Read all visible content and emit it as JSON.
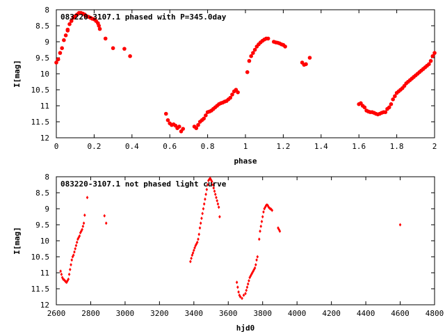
{
  "chart_data": [
    {
      "type": "scatter",
      "title": "083220-3107.1 phased with P=345.0day",
      "xlabel": "phase",
      "ylabel": "I[mag]",
      "xlim": [
        0,
        2
      ],
      "ylim": [
        8,
        12
      ],
      "y_inverted": true,
      "xticks": [
        "0",
        "0.2",
        "0.4",
        "0.6",
        "0.8",
        "1",
        "1.2",
        "1.4",
        "1.6",
        "1.8",
        "2"
      ],
      "yticks": [
        "8",
        "8.5",
        "9",
        "9.5",
        "10",
        "10.5",
        "11",
        "11.5",
        "12"
      ],
      "grid": false,
      "point_color": "#ff0000",
      "series": [
        {
          "points": [
            [
              0.0,
              9.65
            ],
            [
              0.01,
              9.55
            ],
            [
              0.02,
              9.35
            ],
            [
              0.03,
              9.2
            ],
            [
              0.04,
              8.95
            ],
            [
              0.05,
              8.8
            ],
            [
              0.06,
              8.62
            ],
            [
              0.07,
              8.45
            ],
            [
              0.08,
              8.35
            ],
            [
              0.09,
              8.25
            ],
            [
              0.1,
              8.2
            ],
            [
              0.11,
              8.15
            ],
            [
              0.12,
              8.1
            ],
            [
              0.13,
              8.1
            ],
            [
              0.14,
              8.12
            ],
            [
              0.15,
              8.15
            ],
            [
              0.16,
              8.2
            ],
            [
              0.17,
              8.22
            ],
            [
              0.18,
              8.25
            ],
            [
              0.19,
              8.28
            ],
            [
              0.2,
              8.3
            ],
            [
              0.21,
              8.35
            ],
            [
              0.22,
              8.42
            ],
            [
              0.225,
              8.5
            ],
            [
              0.23,
              8.6
            ],
            [
              0.06,
              8.65
            ],
            [
              0.26,
              8.9
            ],
            [
              0.3,
              9.2
            ],
            [
              0.36,
              9.22
            ],
            [
              0.39,
              9.45
            ],
            [
              0.58,
              11.25
            ],
            [
              0.59,
              11.45
            ],
            [
              0.6,
              11.55
            ],
            [
              0.61,
              11.6
            ],
            [
              0.62,
              11.58
            ],
            [
              0.63,
              11.62
            ],
            [
              0.64,
              11.7
            ],
            [
              0.65,
              11.65
            ],
            [
              0.66,
              11.8
            ],
            [
              0.67,
              11.72
            ],
            [
              0.73,
              11.65
            ],
            [
              0.74,
              11.7
            ],
            [
              0.75,
              11.6
            ],
            [
              0.76,
              11.5
            ],
            [
              0.77,
              11.45
            ],
            [
              0.78,
              11.4
            ],
            [
              0.79,
              11.3
            ],
            [
              0.8,
              11.2
            ],
            [
              0.81,
              11.18
            ],
            [
              0.82,
              11.15
            ],
            [
              0.83,
              11.1
            ],
            [
              0.84,
              11.05
            ],
            [
              0.85,
              11.0
            ],
            [
              0.86,
              10.95
            ],
            [
              0.87,
              10.92
            ],
            [
              0.88,
              10.9
            ],
            [
              0.89,
              10.87
            ],
            [
              0.9,
              10.85
            ],
            [
              0.91,
              10.8
            ],
            [
              0.92,
              10.75
            ],
            [
              0.93,
              10.65
            ],
            [
              0.94,
              10.55
            ],
            [
              0.95,
              10.5
            ],
            [
              0.96,
              10.58
            ],
            [
              1.01,
              9.95
            ],
            [
              1.02,
              9.6
            ],
            [
              1.03,
              9.45
            ],
            [
              1.04,
              9.35
            ],
            [
              1.05,
              9.25
            ],
            [
              1.06,
              9.15
            ],
            [
              1.07,
              9.08
            ],
            [
              1.08,
              9.02
            ],
            [
              1.09,
              8.97
            ],
            [
              1.1,
              8.93
            ],
            [
              1.11,
              8.9
            ],
            [
              1.12,
              8.9
            ],
            [
              1.15,
              9.0
            ],
            [
              1.16,
              9.02
            ],
            [
              1.17,
              9.03
            ],
            [
              1.18,
              9.05
            ],
            [
              1.19,
              9.08
            ],
            [
              1.2,
              9.1
            ],
            [
              1.21,
              9.15
            ],
            [
              1.3,
              9.65
            ],
            [
              1.31,
              9.72
            ],
            [
              1.32,
              9.7
            ],
            [
              1.34,
              9.5
            ],
            [
              1.6,
              10.95
            ],
            [
              1.61,
              10.92
            ],
            [
              1.62,
              11.0
            ],
            [
              1.63,
              11.05
            ],
            [
              1.64,
              11.15
            ],
            [
              1.65,
              11.18
            ],
            [
              1.66,
              11.2
            ],
            [
              1.67,
              11.2
            ],
            [
              1.68,
              11.22
            ],
            [
              1.69,
              11.25
            ],
            [
              1.7,
              11.27
            ],
            [
              1.71,
              11.25
            ],
            [
              1.72,
              11.22
            ],
            [
              1.73,
              11.2
            ],
            [
              1.74,
              11.2
            ],
            [
              1.75,
              11.1
            ],
            [
              1.76,
              11.05
            ],
            [
              1.77,
              10.95
            ],
            [
              1.78,
              10.8
            ],
            [
              1.79,
              10.7
            ],
            [
              1.8,
              10.6
            ],
            [
              1.81,
              10.55
            ],
            [
              1.82,
              10.5
            ],
            [
              1.83,
              10.45
            ],
            [
              1.84,
              10.38
            ],
            [
              1.85,
              10.3
            ],
            [
              1.86,
              10.25
            ],
            [
              1.87,
              10.2
            ],
            [
              1.88,
              10.15
            ],
            [
              1.89,
              10.1
            ],
            [
              1.9,
              10.05
            ],
            [
              1.91,
              10.0
            ],
            [
              1.92,
              9.95
            ],
            [
              1.93,
              9.9
            ],
            [
              1.94,
              9.85
            ],
            [
              1.95,
              9.8
            ],
            [
              1.96,
              9.75
            ],
            [
              1.97,
              9.7
            ],
            [
              1.98,
              9.6
            ],
            [
              1.99,
              9.45
            ],
            [
              2.0,
              9.35
            ]
          ]
        }
      ]
    },
    {
      "type": "scatter",
      "title": "083220-3107.1 not phased light curve",
      "xlabel": "hjd0",
      "ylabel": "I[mag]",
      "xlim": [
        2600,
        4800
      ],
      "ylim": [
        8,
        12
      ],
      "y_inverted": true,
      "xticks": [
        "2600",
        "2800",
        "3000",
        "3200",
        "3400",
        "3600",
        "3800",
        "4000",
        "4200",
        "4400",
        "4600",
        "4800"
      ],
      "yticks": [
        "8",
        "8.5",
        "9",
        "9.5",
        "10",
        "10.5",
        "11",
        "11.5",
        "12"
      ],
      "grid": false,
      "point_color": "#ff0000",
      "series": [
        {
          "points": [
            [
              2625,
              10.95
            ],
            [
              2630,
              11.05
            ],
            [
              2635,
              11.15
            ],
            [
              2640,
              11.2
            ],
            [
              2645,
              11.22
            ],
            [
              2650,
              11.25
            ],
            [
              2655,
              11.28
            ],
            [
              2660,
              11.3
            ],
            [
              2665,
              11.25
            ],
            [
              2670,
              11.2
            ],
            [
              2675,
              11.05
            ],
            [
              2680,
              10.9
            ],
            [
              2685,
              10.75
            ],
            [
              2690,
              10.6
            ],
            [
              2695,
              10.5
            ],
            [
              2700,
              10.45
            ],
            [
              2705,
              10.35
            ],
            [
              2710,
              10.25
            ],
            [
              2715,
              10.15
            ],
            [
              2720,
              10.05
            ],
            [
              2725,
              9.95
            ],
            [
              2730,
              9.9
            ],
            [
              2735,
              9.85
            ],
            [
              2740,
              9.75
            ],
            [
              2745,
              9.7
            ],
            [
              2750,
              9.65
            ],
            [
              2755,
              9.55
            ],
            [
              2760,
              9.45
            ],
            [
              2765,
              9.2
            ],
            [
              2780,
              8.65
            ],
            [
              2880,
              9.22
            ],
            [
              2890,
              9.45
            ],
            [
              3380,
              10.65
            ],
            [
              3385,
              10.55
            ],
            [
              3390,
              10.45
            ],
            [
              3395,
              10.38
            ],
            [
              3400,
              10.3
            ],
            [
              3405,
              10.22
            ],
            [
              3410,
              10.15
            ],
            [
              3415,
              10.1
            ],
            [
              3420,
              10.05
            ],
            [
              3425,
              9.95
            ],
            [
              3430,
              9.8
            ],
            [
              3435,
              9.6
            ],
            [
              3440,
              9.45
            ],
            [
              3445,
              9.3
            ],
            [
              3450,
              9.15
            ],
            [
              3455,
              9.0
            ],
            [
              3460,
              8.85
            ],
            [
              3465,
              8.7
            ],
            [
              3470,
              8.55
            ],
            [
              3475,
              8.4
            ],
            [
              3480,
              8.25
            ],
            [
              3485,
              8.12
            ],
            [
              3490,
              8.08
            ],
            [
              3495,
              8.05
            ],
            [
              3500,
              8.1
            ],
            [
              3505,
              8.15
            ],
            [
              3510,
              8.25
            ],
            [
              3515,
              8.35
            ],
            [
              3520,
              8.45
            ],
            [
              3525,
              8.55
            ],
            [
              3530,
              8.65
            ],
            [
              3535,
              8.75
            ],
            [
              3540,
              8.85
            ],
            [
              3545,
              8.95
            ],
            [
              3550,
              9.25
            ],
            [
              3650,
              11.3
            ],
            [
              3655,
              11.45
            ],
            [
              3660,
              11.6
            ],
            [
              3665,
              11.7
            ],
            [
              3670,
              11.75
            ],
            [
              3680,
              11.8
            ],
            [
              3690,
              11.7
            ],
            [
              3700,
              11.65
            ],
            [
              3705,
              11.55
            ],
            [
              3710,
              11.45
            ],
            [
              3715,
              11.35
            ],
            [
              3720,
              11.25
            ],
            [
              3725,
              11.15
            ],
            [
              3730,
              11.1
            ],
            [
              3735,
              11.05
            ],
            [
              3740,
              11.0
            ],
            [
              3745,
              10.95
            ],
            [
              3750,
              10.9
            ],
            [
              3755,
              10.85
            ],
            [
              3760,
              10.75
            ],
            [
              3765,
              10.6
            ],
            [
              3770,
              10.5
            ],
            [
              3780,
              9.95
            ],
            [
              3785,
              9.7
            ],
            [
              3790,
              9.55
            ],
            [
              3795,
              9.4
            ],
            [
              3800,
              9.25
            ],
            [
              3805,
              9.1
            ],
            [
              3810,
              9.0
            ],
            [
              3815,
              8.95
            ],
            [
              3820,
              8.9
            ],
            [
              3825,
              8.88
            ],
            [
              3830,
              8.9
            ],
            [
              3835,
              8.95
            ],
            [
              3840,
              8.98
            ],
            [
              3845,
              9.0
            ],
            [
              3850,
              9.02
            ],
            [
              3855,
              9.05
            ],
            [
              3890,
              9.6
            ],
            [
              3895,
              9.65
            ],
            [
              3900,
              9.7
            ],
            [
              4600,
              9.5
            ]
          ]
        }
      ]
    }
  ]
}
